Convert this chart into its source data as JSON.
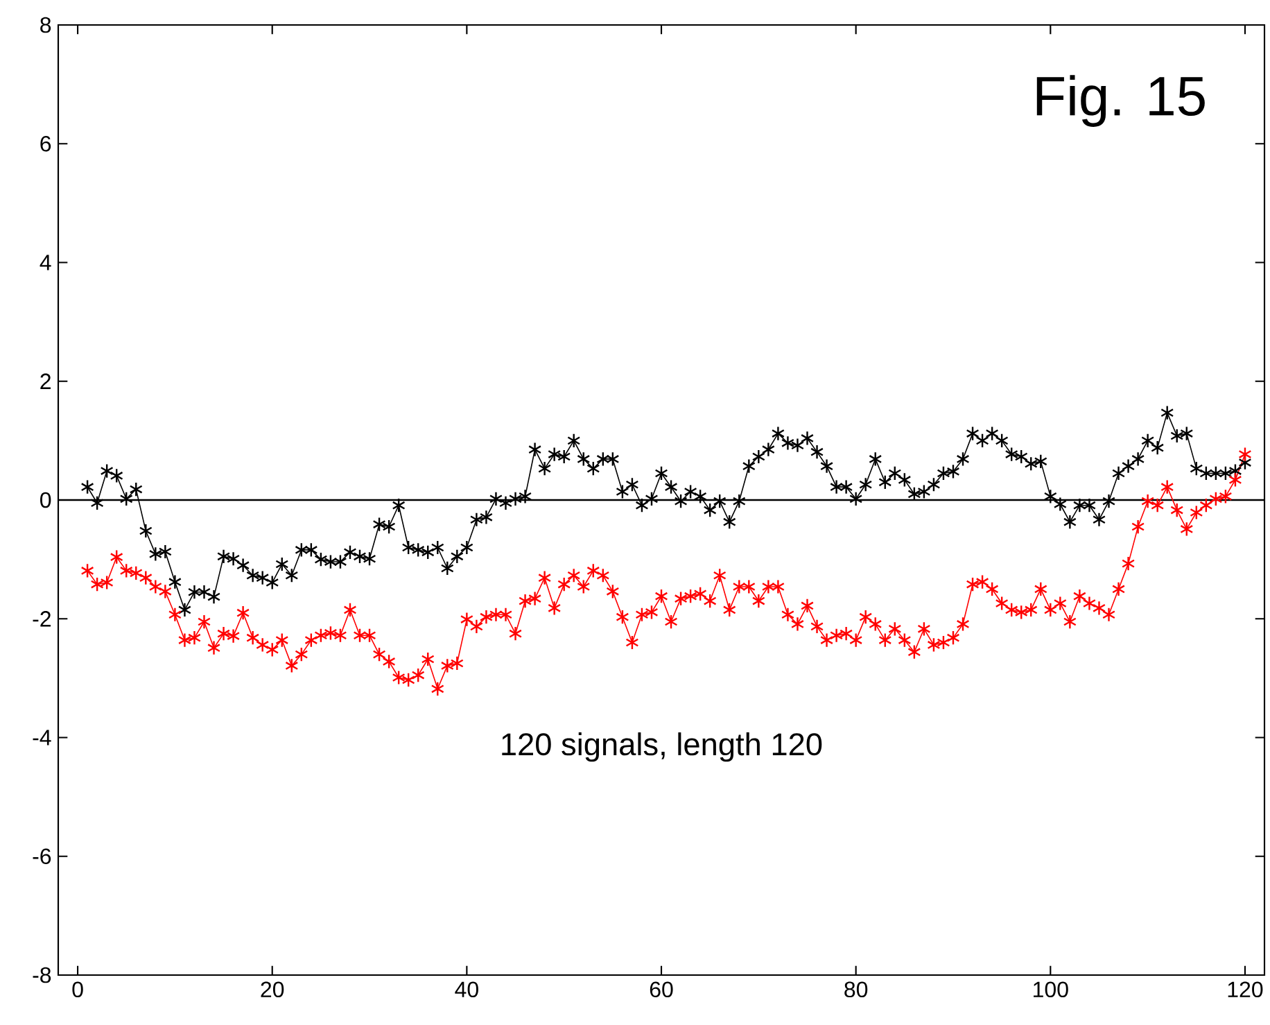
{
  "chart_data": {
    "type": "line",
    "x": [
      1,
      2,
      3,
      4,
      5,
      6,
      7,
      8,
      9,
      10,
      11,
      12,
      13,
      14,
      15,
      16,
      17,
      18,
      19,
      20,
      21,
      22,
      23,
      24,
      25,
      26,
      27,
      28,
      29,
      30,
      31,
      32,
      33,
      34,
      35,
      36,
      37,
      38,
      39,
      40,
      41,
      42,
      43,
      44,
      45,
      46,
      47,
      48,
      49,
      50,
      51,
      52,
      53,
      54,
      55,
      56,
      57,
      58,
      59,
      60,
      61,
      62,
      63,
      64,
      65,
      66,
      67,
      68,
      69,
      70,
      71,
      72,
      73,
      74,
      75,
      76,
      77,
      78,
      79,
      80,
      81,
      82,
      83,
      84,
      85,
      86,
      87,
      88,
      89,
      90,
      91,
      92,
      93,
      94,
      95,
      96,
      97,
      98,
      99,
      100,
      101,
      102,
      103,
      104,
      105,
      106,
      107,
      108,
      109,
      110,
      111,
      112,
      113,
      114,
      115,
      116,
      117,
      118,
      119,
      120
    ],
    "series": [
      {
        "color": "#000000",
        "values": [
          0.22,
          -0.05,
          0.49,
          0.41,
          0.02,
          0.18,
          -0.52,
          -0.91,
          -0.87,
          -1.38,
          -1.85,
          -1.55,
          -1.55,
          -1.63,
          -0.95,
          -0.99,
          -1.1,
          -1.27,
          -1.31,
          -1.39,
          -1.08,
          -1.27,
          -0.84,
          -0.84,
          -1.0,
          -1.04,
          -1.04,
          -0.88,
          -0.95,
          -0.99,
          -0.41,
          -0.45,
          -0.09,
          -0.8,
          -0.84,
          -0.88,
          -0.8,
          -1.15,
          -0.95,
          -0.8,
          -0.33,
          -0.29,
          0.02,
          -0.05,
          0.02,
          0.06,
          0.85,
          0.53,
          0.77,
          0.73,
          1.0,
          0.69,
          0.53,
          0.69,
          0.69,
          0.14,
          0.26,
          -0.09,
          0.02,
          0.45,
          0.22,
          -0.02,
          0.14,
          0.06,
          -0.17,
          -0.02,
          -0.37,
          -0.02,
          0.57,
          0.73,
          0.85,
          1.12,
          0.96,
          0.92,
          1.04,
          0.81,
          0.57,
          0.22,
          0.22,
          0.02,
          0.26,
          0.69,
          0.3,
          0.45,
          0.34,
          0.1,
          0.14,
          0.26,
          0.45,
          0.48,
          0.69,
          1.12,
          1.0,
          1.12,
          1.0,
          0.77,
          0.73,
          0.61,
          0.65,
          0.06,
          -0.07,
          -0.37,
          -0.09,
          -0.09,
          -0.33,
          -0.02,
          0.45,
          0.57,
          0.69,
          1.0,
          0.88,
          1.47,
          1.08,
          1.12,
          0.53,
          0.45,
          0.45,
          0.45,
          0.49,
          0.63
        ]
      },
      {
        "color": "#ff0000",
        "values": [
          -1.19,
          -1.42,
          -1.39,
          -0.96,
          -1.19,
          -1.23,
          -1.31,
          -1.46,
          -1.54,
          -1.93,
          -2.36,
          -2.32,
          -2.05,
          -2.49,
          -2.25,
          -2.29,
          -1.9,
          -2.32,
          -2.44,
          -2.52,
          -2.36,
          -2.79,
          -2.6,
          -2.36,
          -2.28,
          -2.24,
          -2.28,
          -1.85,
          -2.28,
          -2.28,
          -2.6,
          -2.72,
          -2.99,
          -3.03,
          -2.95,
          -2.68,
          -3.18,
          -2.79,
          -2.75,
          -2.01,
          -2.13,
          -1.97,
          -1.93,
          -1.93,
          -2.25,
          -1.7,
          -1.66,
          -1.31,
          -1.82,
          -1.42,
          -1.27,
          -1.46,
          -1.19,
          -1.27,
          -1.54,
          -1.97,
          -2.4,
          -1.93,
          -1.89,
          -1.62,
          -2.05,
          -1.66,
          -1.62,
          -1.58,
          -1.7,
          -1.27,
          -1.85,
          -1.46,
          -1.46,
          -1.7,
          -1.46,
          -1.46,
          -1.93,
          -2.09,
          -1.78,
          -2.13,
          -2.36,
          -2.28,
          -2.25,
          -2.36,
          -1.97,
          -2.09,
          -2.36,
          -2.17,
          -2.36,
          -2.56,
          -2.17,
          -2.44,
          -2.4,
          -2.32,
          -2.09,
          -1.42,
          -1.38,
          -1.5,
          -1.74,
          -1.85,
          -1.89,
          -1.85,
          -1.5,
          -1.85,
          -1.74,
          -2.05,
          -1.62,
          -1.74,
          -1.82,
          -1.93,
          -1.5,
          -1.07,
          -0.45,
          -0.02,
          -0.09,
          0.22,
          -0.17,
          -0.49,
          -0.21,
          -0.09,
          0.02,
          0.06,
          0.34,
          0.77
        ]
      }
    ],
    "xlim": [
      -2,
      122
    ],
    "ylim": [
      -8,
      8
    ],
    "xticks": [
      0,
      20,
      40,
      60,
      80,
      100,
      120
    ],
    "yticks": [
      -8,
      -6,
      -4,
      -2,
      0,
      2,
      4,
      6,
      8
    ],
    "ref_lines": [
      {
        "axis": "y",
        "value": 0,
        "color": "#000000"
      }
    ],
    "annotations": [
      "Fig. 15",
      "120 signals, length 120"
    ],
    "marker": "cross",
    "line_style": "solid",
    "grid": false
  }
}
